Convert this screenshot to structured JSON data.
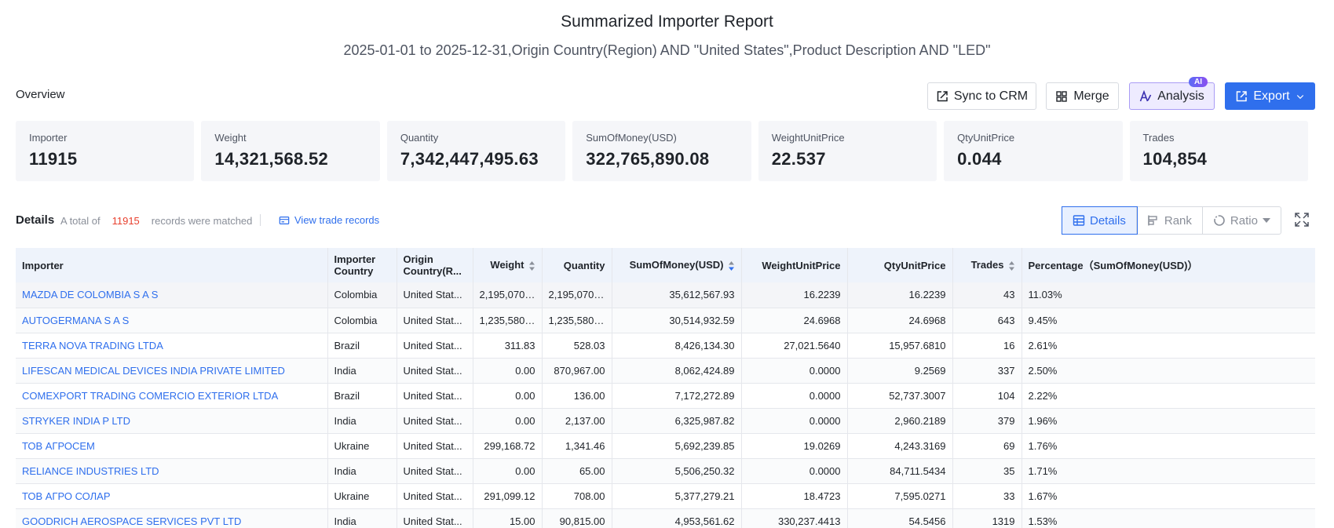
{
  "report": {
    "title": "Summarized Importer Report",
    "subtitle": "2025-01-01 to 2025-12-31,Origin Country(Region) AND \"United States\",Product Description AND \"LED\""
  },
  "overview": {
    "label": "Overview",
    "buttons": {
      "sync": "Sync to CRM",
      "merge": "Merge",
      "analysis": "Analysis",
      "ai_badge": "AI",
      "export": "Export"
    },
    "cards": [
      {
        "label": "Importer",
        "value": "11915"
      },
      {
        "label": "Weight",
        "value": "14,321,568.52"
      },
      {
        "label": "Quantity",
        "value": "7,342,447,495.63"
      },
      {
        "label": "SumOfMoney(USD)",
        "value": "322,765,890.08"
      },
      {
        "label": "WeightUnitPrice",
        "value": "22.537"
      },
      {
        "label": "QtyUnitPrice",
        "value": "0.044"
      },
      {
        "label": "Trades",
        "value": "104,854"
      }
    ]
  },
  "details": {
    "label": "Details",
    "records_prefix": "A total of",
    "records_count": "11915",
    "records_suffix": "records were matched",
    "view_link": "View trade records",
    "tabs": {
      "details": "Details",
      "rank": "Rank",
      "ratio": "Ratio"
    }
  },
  "table": {
    "headers": {
      "importer": "Importer",
      "country": "Importer Country",
      "origin": "Origin Country(R...",
      "weight": "Weight",
      "quantity": "Quantity",
      "sum": "SumOfMoney(USD)",
      "wup": "WeightUnitPrice",
      "qup": "QtyUnitPrice",
      "trades": "Trades",
      "pct": "Percentage（SumOfMoney(USD)）"
    },
    "rows": [
      {
        "importer": "MAZDA DE COLOMBIA S A S",
        "country": "Colombia",
        "origin": "United Stat...",
        "weight": "2,195,070....",
        "quantity": "2,195,070....",
        "sum": "35,612,567.93",
        "wup": "16.2239",
        "qup": "16.2239",
        "trades": "43",
        "pct": "11.03%"
      },
      {
        "importer": "AUTOGERMANA S A S",
        "country": "Colombia",
        "origin": "United Stat...",
        "weight": "1,235,580....",
        "quantity": "1,235,580....",
        "sum": "30,514,932.59",
        "wup": "24.6968",
        "qup": "24.6968",
        "trades": "643",
        "pct": "9.45%"
      },
      {
        "importer": "TERRA NOVA TRADING LTDA",
        "country": "Brazil",
        "origin": "United Stat...",
        "weight": "311.83",
        "quantity": "528.03",
        "sum": "8,426,134.30",
        "wup": "27,021.5640",
        "qup": "15,957.6810",
        "trades": "16",
        "pct": "2.61%"
      },
      {
        "importer": "LIFESCAN MEDICAL DEVICES INDIA PRIVATE LIMITED",
        "country": "India",
        "origin": "United Stat...",
        "weight": "0.00",
        "quantity": "870,967.00",
        "sum": "8,062,424.89",
        "wup": "0.0000",
        "qup": "9.2569",
        "trades": "337",
        "pct": "2.50%"
      },
      {
        "importer": "COMEXPORT TRADING COMERCIO EXTERIOR LTDA",
        "country": "Brazil",
        "origin": "United Stat...",
        "weight": "0.00",
        "quantity": "136.00",
        "sum": "7,172,272.89",
        "wup": "0.0000",
        "qup": "52,737.3007",
        "trades": "104",
        "pct": "2.22%"
      },
      {
        "importer": "STRYKER INDIA P LTD",
        "country": "India",
        "origin": "United Stat...",
        "weight": "0.00",
        "quantity": "2,137.00",
        "sum": "6,325,987.82",
        "wup": "0.0000",
        "qup": "2,960.2189",
        "trades": "379",
        "pct": "1.96%"
      },
      {
        "importer": "ТОВ АГРОСЕМ",
        "country": "Ukraine",
        "origin": "United Stat...",
        "weight": "299,168.72",
        "quantity": "1,341.46",
        "sum": "5,692,239.85",
        "wup": "19.0269",
        "qup": "4,243.3169",
        "trades": "69",
        "pct": "1.76%"
      },
      {
        "importer": "RELIANCE INDUSTRIES LTD",
        "country": "India",
        "origin": "United Stat...",
        "weight": "0.00",
        "quantity": "65.00",
        "sum": "5,506,250.32",
        "wup": "0.0000",
        "qup": "84,711.5434",
        "trades": "35",
        "pct": "1.71%"
      },
      {
        "importer": "ТОВ АГРО СОЛАР",
        "country": "Ukraine",
        "origin": "United Stat...",
        "weight": "291,099.12",
        "quantity": "708.00",
        "sum": "5,377,279.21",
        "wup": "18.4723",
        "qup": "7,595.0271",
        "trades": "33",
        "pct": "1.67%"
      },
      {
        "importer": "GOODRICH AEROSPACE SERVICES PVT LTD",
        "country": "India",
        "origin": "United Stat...",
        "weight": "15.00",
        "quantity": "90,815.00",
        "sum": "4,953,561.62",
        "wup": "330,237.4413",
        "qup": "54.5456",
        "trades": "1319",
        "pct": "1.53%"
      }
    ]
  },
  "colors": {
    "accent": "#2f6fed",
    "count_red": "#e8402e",
    "analysis_bg": "#eeebff",
    "header_bg": "#eef3fb",
    "card_bg": "#f5f6f9"
  },
  "icons": [
    "sync-icon",
    "merge-icon",
    "ai-analysis-icon",
    "export-icon",
    "chevron-down-icon",
    "view-records-icon",
    "table-icon",
    "rank-icon",
    "ratio-icon",
    "fullscreen-icon",
    "sort-icon"
  ]
}
